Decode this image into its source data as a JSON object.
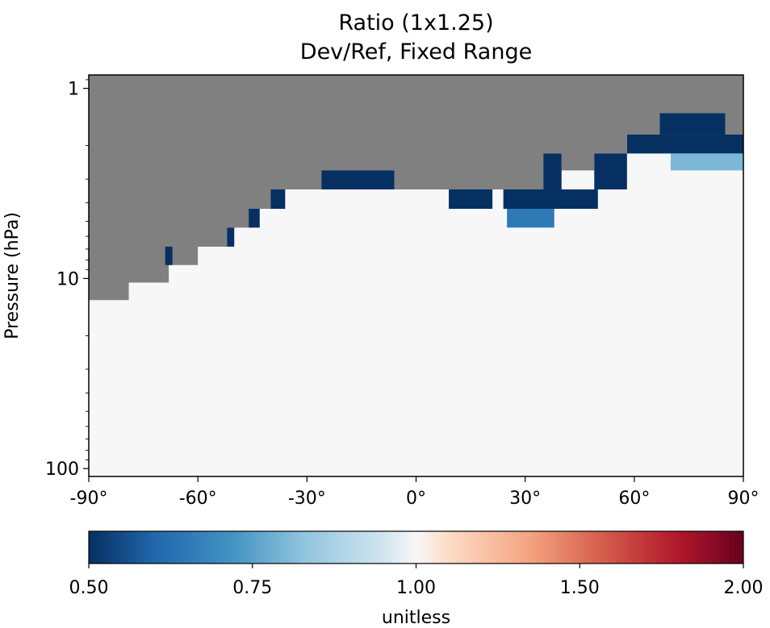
{
  "chart_data": {
    "type": "heatmap",
    "title": "Ratio (1x1.25)",
    "subtitle": "Dev/Ref, Fixed Range",
    "xlabel": "",
    "ylabel": "Pressure (hPa)",
    "xlim": [
      -90,
      90
    ],
    "ylim": [
      110,
      0.85
    ],
    "y_scale": "log",
    "x_tick_labels": [
      "-90°",
      "-60°",
      "-30°",
      "0°",
      "30°",
      "60°",
      "90°"
    ],
    "x_ticks": [
      -90,
      -60,
      -30,
      0,
      30,
      60,
      90
    ],
    "y_tick_labels": [
      "1",
      "10",
      "100"
    ],
    "y_ticks": [
      1,
      10,
      100
    ],
    "missing_color": "#808080",
    "colorbar": {
      "label": "unitless",
      "tick_labels": [
        "0.50",
        "0.75",
        "1.00",
        "1.50",
        "2.00"
      ],
      "ticks": [
        0.5,
        0.75,
        1.0,
        1.5,
        2.0
      ],
      "range": [
        0.5,
        2.0
      ],
      "colormap": "RdBu_r"
    },
    "top_of_valid_data": [
      {
        "lat": -90,
        "pressure": 13.0
      },
      {
        "lat": -79,
        "pressure": 10.5
      },
      {
        "lat": -68,
        "pressure": 8.5
      },
      {
        "lat": -60,
        "pressure": 6.8
      },
      {
        "lat": -52,
        "pressure": 5.4
      },
      {
        "lat": -45,
        "pressure": 4.3
      },
      {
        "lat": -40,
        "pressure": 3.4
      },
      {
        "lat": -25,
        "pressure": 2.7
      },
      {
        "lat": -6,
        "pressure": 3.4
      },
      {
        "lat": 23,
        "pressure": 3.4
      },
      {
        "lat": 35,
        "pressure": 2.2
      },
      {
        "lat": 40,
        "pressure": 2.7
      },
      {
        "lat": 49,
        "pressure": 2.2
      },
      {
        "lat": 58,
        "pressure": 1.75
      },
      {
        "lat": 67,
        "pressure": 1.35
      },
      {
        "lat": 85,
        "pressure": 1.75
      },
      {
        "lat": 90,
        "pressure": 1.75
      }
    ],
    "low_ratio_regions": [
      {
        "lat_range": [
          -26,
          -6
        ],
        "pressure_range": [
          2.7,
          3.4
        ],
        "ratio": 0.5
      },
      {
        "lat_range": [
          -40,
          -36
        ],
        "pressure_range": [
          3.4,
          4.3
        ],
        "ratio": 0.5
      },
      {
        "lat_range": [
          -46,
          -43
        ],
        "pressure_range": [
          4.3,
          5.4
        ],
        "ratio": 0.5
      },
      {
        "lat_range": [
          -52,
          -50
        ],
        "pressure_range": [
          5.4,
          6.8
        ],
        "ratio": 0.5
      },
      {
        "lat_range": [
          -69,
          -67
        ],
        "pressure_range": [
          6.8,
          8.5
        ],
        "ratio": 0.5
      },
      {
        "lat_range": [
          9,
          21
        ],
        "pressure_range": [
          3.4,
          4.3
        ],
        "ratio": 0.5
      },
      {
        "lat_range": [
          24,
          50
        ],
        "pressure_range": [
          3.4,
          4.3
        ],
        "ratio": 0.5
      },
      {
        "lat_range": [
          25,
          38
        ],
        "pressure_range": [
          4.3,
          5.4
        ],
        "ratio": 0.65
      },
      {
        "lat_range": [
          35,
          40
        ],
        "pressure_range": [
          2.2,
          3.4
        ],
        "ratio": 0.5
      },
      {
        "lat_range": [
          49,
          58
        ],
        "pressure_range": [
          2.2,
          3.4
        ],
        "ratio": 0.5
      },
      {
        "lat_range": [
          58,
          90
        ],
        "pressure_range": [
          1.75,
          2.2
        ],
        "ratio": 0.5
      },
      {
        "lat_range": [
          67,
          85
        ],
        "pressure_range": [
          1.35,
          1.75
        ],
        "ratio": 0.5
      },
      {
        "lat_range": [
          70,
          90
        ],
        "pressure_range": [
          2.2,
          2.7
        ],
        "ratio": 0.8
      }
    ],
    "background_ratio": 1.0
  }
}
